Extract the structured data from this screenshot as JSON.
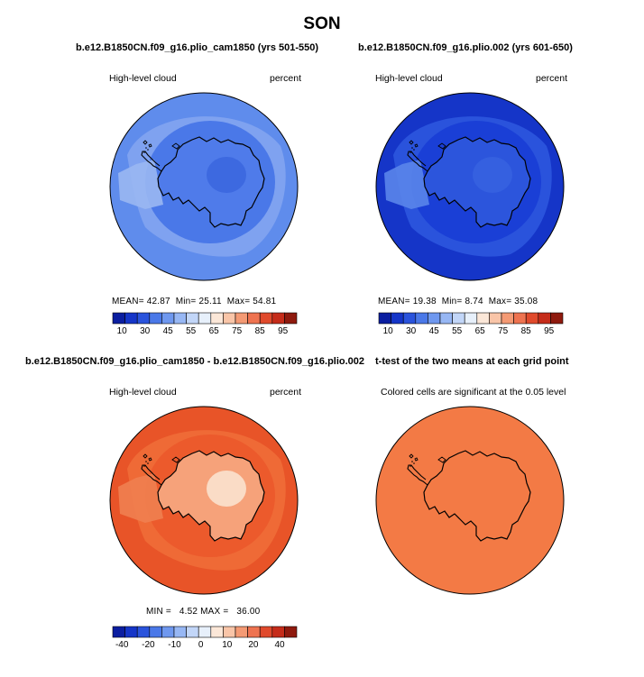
{
  "figure": {
    "title": "SON"
  },
  "panels": [
    {
      "title": "b.e12.B1850CN.f09_g16.plio_cam1850 (yrs 501-550)",
      "left_label": "High-level cloud",
      "right_label": "percent",
      "stats": {
        "mean_label": "MEAN=",
        "mean": "42.87",
        "min_label": "Min=",
        "min": "25.11",
        "max_label": "Max=",
        "max": "54.81"
      },
      "colors": {
        "ocean": "#4a78e8",
        "ring": "#7fa2f0",
        "outer": "#5f8cec",
        "land": "#4f7bea",
        "interior": "#3d69e0",
        "coast": "#9ab7f2"
      }
    },
    {
      "title": "b.e12.B1850CN.f09_g16.plio.002 (yrs 601-650)",
      "left_label": "High-level cloud",
      "right_label": "percent",
      "stats": {
        "mean_label": "MEAN=",
        "mean": "19.38",
        "min_label": "Min=",
        "min": "8.74",
        "max_label": "Max=",
        "max": "35.08"
      },
      "colors": {
        "ocean": "#1a3fd6",
        "ring": "#2a53dc",
        "outer": "#1535c8",
        "land": "#2c55dc",
        "interior": "#3560e0",
        "coast": "#5a85ea"
      }
    },
    {
      "title": "b.e12.B1850CN.f09_g16.plio_cam1850 - b.e12.B1850CN.f09_g16.plio.002",
      "left_label": "High-level cloud",
      "right_label": "percent",
      "stats": {
        "min_label": "MIN =",
        "min": "4.52",
        "max_label": "MAX =",
        "max": "36.00"
      },
      "colors": {
        "ocean": "#ec5a2c",
        "ring": "#ef6a36",
        "outer": "#e85428",
        "land": "#f6a27a",
        "interior": "#fadcc6",
        "coast": "#f08050"
      }
    },
    {
      "title": "t-test of the two means at each grid point",
      "left_label": "Colored cells are significant at the 0.05 level",
      "colors": {
        "fill": "#f37a45"
      }
    }
  ],
  "chart_data": {
    "type": "heatmap",
    "projection": "south polar stereographic",
    "season": "SON",
    "variable": "High-level cloud",
    "units": "percent",
    "colorbar_abs": {
      "tick_labels": [
        "10",
        "30",
        "45",
        "55",
        "65",
        "75",
        "85",
        "95"
      ],
      "colors": [
        "#0b1ea0",
        "#1535c8",
        "#2a53dc",
        "#4a78e8",
        "#6f98ef",
        "#97b7f4",
        "#c2d6f8",
        "#e7f0fb",
        "#fbe7d8",
        "#f9c5a8",
        "#f49a74",
        "#ee7350",
        "#e04a2c",
        "#c52c1a",
        "#8f1a0e"
      ]
    },
    "colorbar_diff": {
      "tick_labels": [
        "-40",
        "-20",
        "-10",
        "0",
        "10",
        "20",
        "40"
      ],
      "colors": [
        "#0b1ea0",
        "#1535c8",
        "#2a53dc",
        "#4a78e8",
        "#6f98ef",
        "#97b7f4",
        "#c2d6f8",
        "#e7f0fb",
        "#fbe7d8",
        "#f9c5a8",
        "#f49a74",
        "#ee7350",
        "#e04a2c",
        "#c52c1a",
        "#8f1a0e"
      ]
    },
    "panel_stats": [
      {
        "mean": 42.87,
        "min": 25.11,
        "max": 54.81
      },
      {
        "mean": 19.38,
        "min": 8.74,
        "max": 35.08
      },
      {
        "min": 4.52,
        "max": 36.0
      },
      {}
    ]
  }
}
